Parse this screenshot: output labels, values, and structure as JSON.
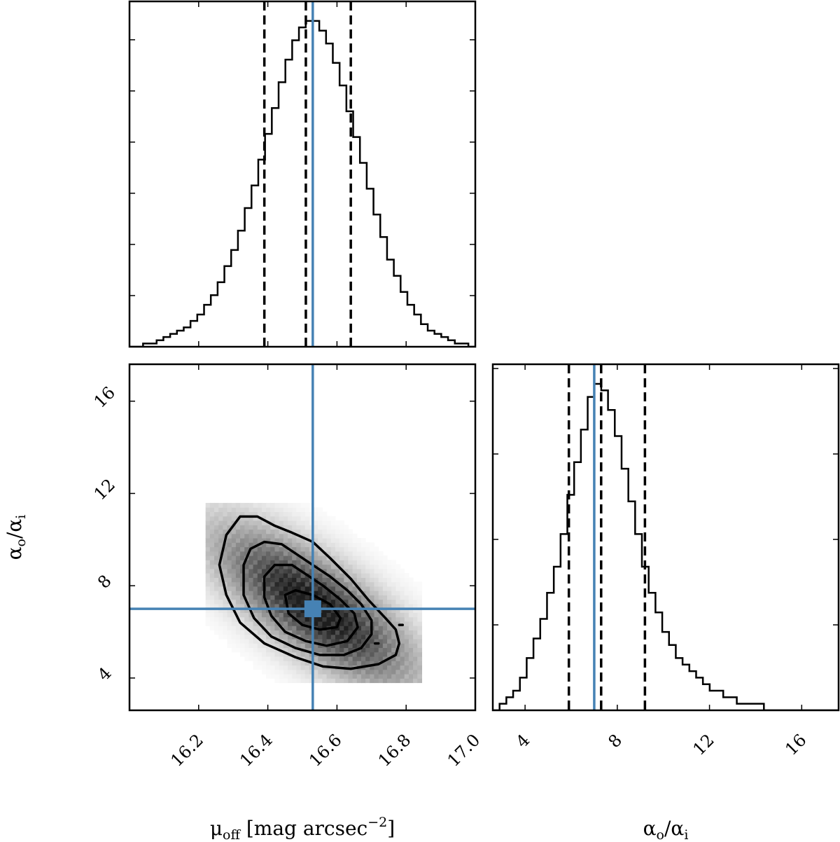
{
  "chart_data": [
    {
      "type": "histogram",
      "panel": "top-left",
      "variable": "mu_off",
      "xlim": [
        16.0,
        17.0
      ],
      "bin_edges_start": 16.0,
      "bin_width": 0.0196,
      "counts": [
        0,
        0,
        1,
        1,
        2,
        3,
        4,
        5,
        6,
        8,
        10,
        13,
        16,
        20,
        25,
        30,
        36,
        43,
        50,
        58,
        66,
        74,
        82,
        89,
        95,
        99,
        101,
        101,
        98,
        94,
        88,
        81,
        73,
        65,
        57,
        49,
        41,
        34,
        27,
        22,
        17,
        13,
        10,
        7,
        5,
        4,
        3,
        2,
        1,
        1,
        0
      ],
      "quantiles": [
        16.39,
        16.51,
        16.64
      ],
      "truth": 16.53
    },
    {
      "type": "heatmap",
      "panel": "bottom-left",
      "x_variable": "mu_off",
      "y_variable": "alpha_o/alpha_i",
      "xlim": [
        16.0,
        17.0
      ],
      "ylim": [
        2.6,
        17.6
      ],
      "xticks": [
        16.2,
        16.4,
        16.6,
        16.8,
        17.0
      ],
      "xtick_labels": [
        "16.2",
        "16.4",
        "16.6",
        "16.8",
        "17.0"
      ],
      "yticks": [
        4,
        8,
        12,
        16
      ],
      "ytick_labels": [
        "4",
        "8",
        "12",
        "16"
      ],
      "density_center": [
        16.53,
        7.0
      ],
      "contours": [
        [
          [
            16.26,
            8.9
          ],
          [
            16.28,
            10.2
          ],
          [
            16.32,
            11.0
          ],
          [
            16.37,
            11.0
          ],
          [
            16.42,
            10.6
          ],
          [
            16.47,
            10.3
          ],
          [
            16.53,
            9.9
          ],
          [
            16.58,
            9.2
          ],
          [
            16.64,
            8.3
          ],
          [
            16.69,
            7.4
          ],
          [
            16.74,
            6.6
          ],
          [
            16.77,
            6.1
          ],
          [
            16.78,
            5.5
          ],
          [
            16.77,
            5.0
          ],
          [
            16.72,
            4.6
          ],
          [
            16.64,
            4.4
          ],
          [
            16.56,
            4.5
          ],
          [
            16.48,
            4.9
          ],
          [
            16.39,
            5.5
          ],
          [
            16.32,
            6.4
          ],
          [
            16.28,
            7.6
          ],
          [
            16.26,
            8.9
          ]
        ],
        [
          [
            16.33,
            8.9
          ],
          [
            16.35,
            9.6
          ],
          [
            16.39,
            9.9
          ],
          [
            16.44,
            9.8
          ],
          [
            16.48,
            9.4
          ],
          [
            16.53,
            8.9
          ],
          [
            16.58,
            8.4
          ],
          [
            16.63,
            7.8
          ],
          [
            16.67,
            7.2
          ],
          [
            16.7,
            6.5
          ],
          [
            16.7,
            5.9
          ],
          [
            16.67,
            5.3
          ],
          [
            16.62,
            5.0
          ],
          [
            16.55,
            5.0
          ],
          [
            16.48,
            5.3
          ],
          [
            16.41,
            5.8
          ],
          [
            16.36,
            6.6
          ],
          [
            16.33,
            7.6
          ],
          [
            16.33,
            8.9
          ]
        ],
        [
          [
            16.39,
            8.4
          ],
          [
            16.42,
            8.9
          ],
          [
            16.47,
            8.9
          ],
          [
            16.51,
            8.5
          ],
          [
            16.56,
            8.0
          ],
          [
            16.61,
            7.4
          ],
          [
            16.65,
            6.8
          ],
          [
            16.66,
            6.2
          ],
          [
            16.63,
            5.6
          ],
          [
            16.57,
            5.4
          ],
          [
            16.51,
            5.6
          ],
          [
            16.45,
            6.0
          ],
          [
            16.41,
            6.7
          ],
          [
            16.39,
            7.5
          ],
          [
            16.39,
            8.4
          ]
        ],
        [
          [
            16.45,
            7.6
          ],
          [
            16.48,
            7.8
          ],
          [
            16.53,
            7.6
          ],
          [
            16.58,
            7.2
          ],
          [
            16.61,
            6.6
          ],
          [
            16.6,
            6.2
          ],
          [
            16.55,
            6.1
          ],
          [
            16.5,
            6.3
          ],
          [
            16.46,
            6.8
          ],
          [
            16.45,
            7.6
          ]
        ]
      ],
      "outlier_contours": [
        [
          [
            16.78,
            6.3
          ],
          [
            16.79,
            6.3
          ]
        ],
        [
          [
            16.71,
            5.5
          ],
          [
            16.72,
            5.5
          ]
        ]
      ],
      "truth": [
        16.53,
        7.0
      ]
    },
    {
      "type": "histogram",
      "panel": "bottom-right",
      "variable": "alpha_o/alpha_i",
      "xlim": [
        2.6,
        17.6
      ],
      "xticks": [
        4,
        8,
        12,
        16
      ],
      "xtick_labels": [
        "4",
        "8",
        "12",
        "16"
      ],
      "bin_edges_start": 2.6,
      "bin_width": 0.294,
      "counts": [
        0,
        1,
        2,
        3,
        5,
        8,
        11,
        14,
        18,
        22,
        27,
        33,
        38,
        43,
        48,
        50,
        49,
        46,
        42,
        37,
        32,
        27,
        22,
        18,
        15,
        12,
        10,
        8,
        7,
        6,
        5,
        4,
        3,
        3,
        2,
        2,
        1,
        1,
        1,
        1,
        0,
        0,
        0,
        0,
        0,
        0,
        0,
        0,
        0,
        0,
        0
      ],
      "quantiles": [
        5.9,
        7.3,
        9.2
      ],
      "truth": 7.0
    }
  ],
  "labels": {
    "x_left_prefix": "μ",
    "x_left_sub": "off",
    "x_left_suffix": " [mag arcsec",
    "x_left_sup": "−2",
    "x_left_close": "]",
    "ratio_a": "α",
    "ratio_a_sub": "o",
    "ratio_slash": "/α",
    "ratio_b_sub": "i"
  },
  "colors": {
    "truth": "#4682b4",
    "line": "#000000",
    "density_max": "#1a1a1a"
  }
}
